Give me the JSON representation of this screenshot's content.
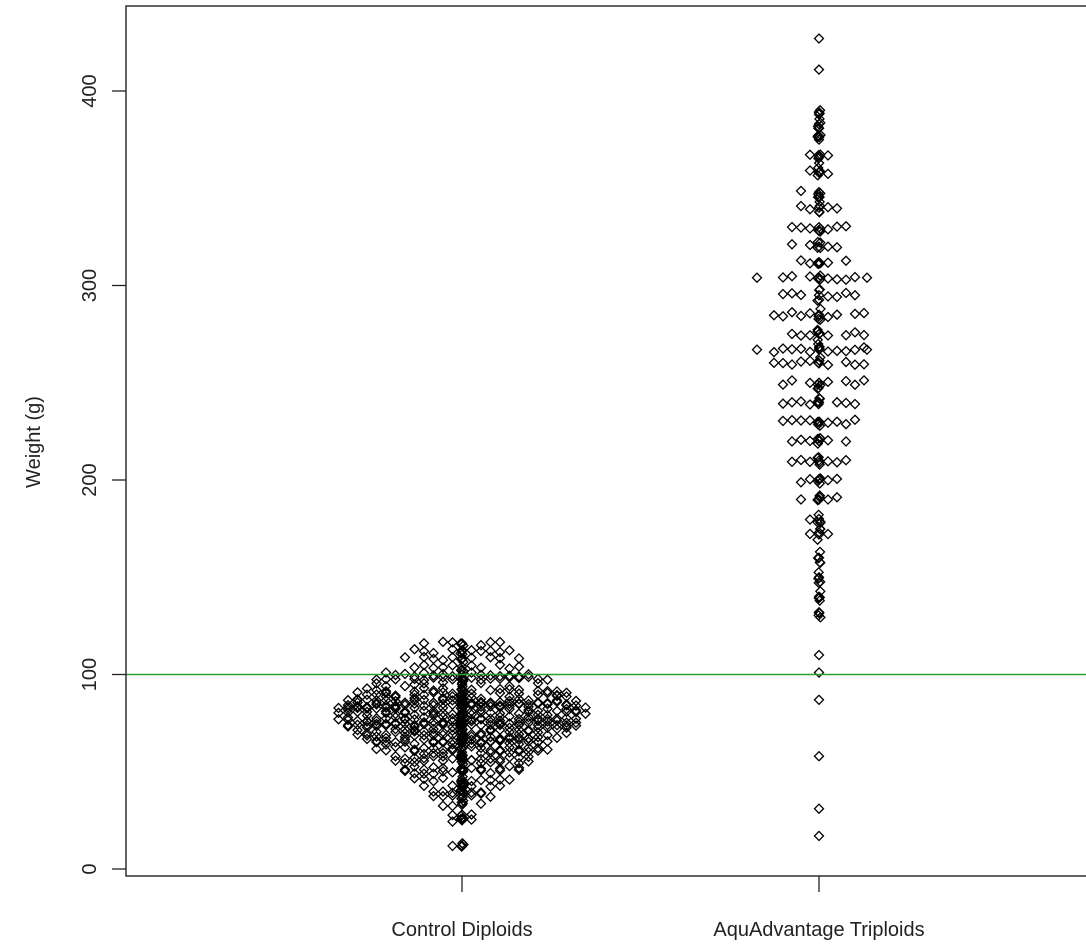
{
  "chart_data": {
    "type": "scatter",
    "title": "",
    "xlabel": "",
    "ylabel": "Weight (g)",
    "ylim": [
      -6,
      435
    ],
    "yticks": [
      0,
      100,
      200,
      300,
      400
    ],
    "categories": [
      "Control Diploids",
      "AquAdvantage Triploids"
    ],
    "reference_line": {
      "y": 100,
      "color": "#2ca02c",
      "orientation": "horizontal"
    },
    "grid": false,
    "legend": "none",
    "marker": "open-diamond",
    "series": [
      {
        "category": "Control Diploids",
        "values": [
          12,
          25,
          28,
          33,
          38,
          40,
          43,
          46,
          50,
          52,
          55,
          57,
          60,
          62,
          65,
          66,
          68,
          70,
          72,
          74,
          75,
          76,
          78,
          80,
          82,
          84,
          85,
          86,
          88,
          90,
          92,
          95,
          98,
          100,
          104,
          108,
          112,
          116
        ]
      },
      {
        "category": "AquAdvantage Triploids",
        "values": [
          17,
          31,
          58,
          87,
          101,
          110,
          132,
          140,
          150,
          160,
          172,
          180,
          190,
          200,
          210,
          220,
          230,
          240,
          250,
          260,
          267,
          275,
          285,
          295,
          304,
          312,
          320,
          330,
          340,
          348,
          358,
          366,
          375,
          383,
          388,
          411,
          427
        ]
      }
    ]
  }
}
